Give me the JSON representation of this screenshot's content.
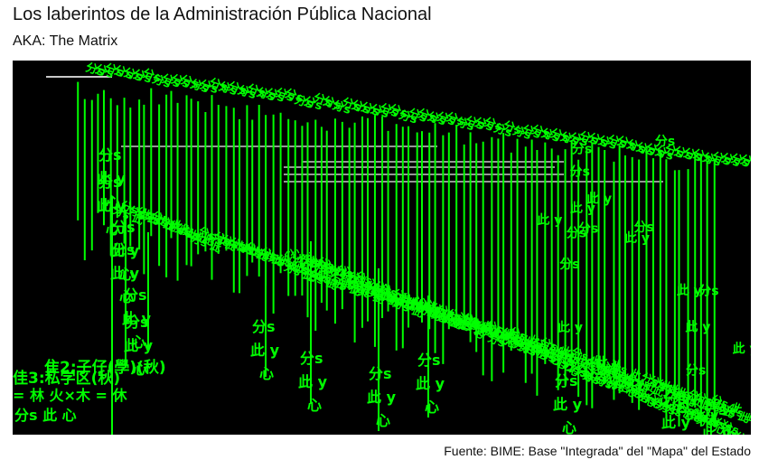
{
  "title": "Los laberintos de la Administración Pública Nacional",
  "subtitle": "AKA: The Matrix",
  "caption": "Fuente: BIME: Base \"Integrada\" del \"Mapa\" del Estado",
  "colors": {
    "background": "#000000",
    "link": "#00ff00",
    "text": "#00ff00",
    "gray_link": "#c8c8c8",
    "page": "#ffffff"
  },
  "chart_data": {
    "type": "tree",
    "glyphs": "分s 此 y 心",
    "nodes_text_sample": [
      "分s",
      "此 y",
      "心"
    ],
    "legend_text": [
      "隹2:子仔(學)(秋)",
      "佳3:私学区(秋)",
      "= 林 火×木 = 休",
      "分s 此  心"
    ],
    "grid": false
  }
}
